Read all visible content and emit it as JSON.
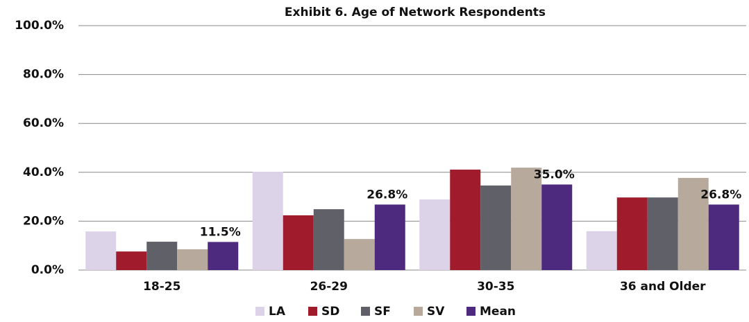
{
  "chart_data": {
    "type": "bar",
    "title": "Exhibit 6. Age of Network Respondents",
    "categories": [
      "18-25",
      "26-29",
      "30-35",
      "36 and Older"
    ],
    "series": [
      {
        "name": "LA",
        "color": "#dcd3e8",
        "values": [
          15.8,
          40.2,
          28.9,
          15.9
        ]
      },
      {
        "name": "SD",
        "color": "#a01c2c",
        "values": [
          7.6,
          22.4,
          41.1,
          29.7
        ]
      },
      {
        "name": "SF",
        "color": "#5f6068",
        "values": [
          11.6,
          24.9,
          34.6,
          29.7
        ]
      },
      {
        "name": "SV",
        "color": "#b7aa9d",
        "values": [
          8.5,
          12.7,
          41.9,
          37.7
        ]
      },
      {
        "name": "Mean",
        "color": "#4e2a7e",
        "values": [
          11.5,
          26.8,
          35.0,
          26.8
        ],
        "value_labels": [
          "11.5%",
          "26.8%",
          "35.0%",
          "26.8%"
        ]
      }
    ],
    "ylim": [
      0,
      100
    ],
    "yticks": [
      {
        "value": 0,
        "label": "0.0%"
      },
      {
        "value": 20,
        "label": "20.0%"
      },
      {
        "value": 40,
        "label": "40.0%"
      },
      {
        "value": 60,
        "label": "60.0%"
      },
      {
        "value": 80,
        "label": "80.0%"
      },
      {
        "value": 100,
        "label": "100.0%"
      }
    ],
    "grid": true,
    "legend": "bottom"
  }
}
